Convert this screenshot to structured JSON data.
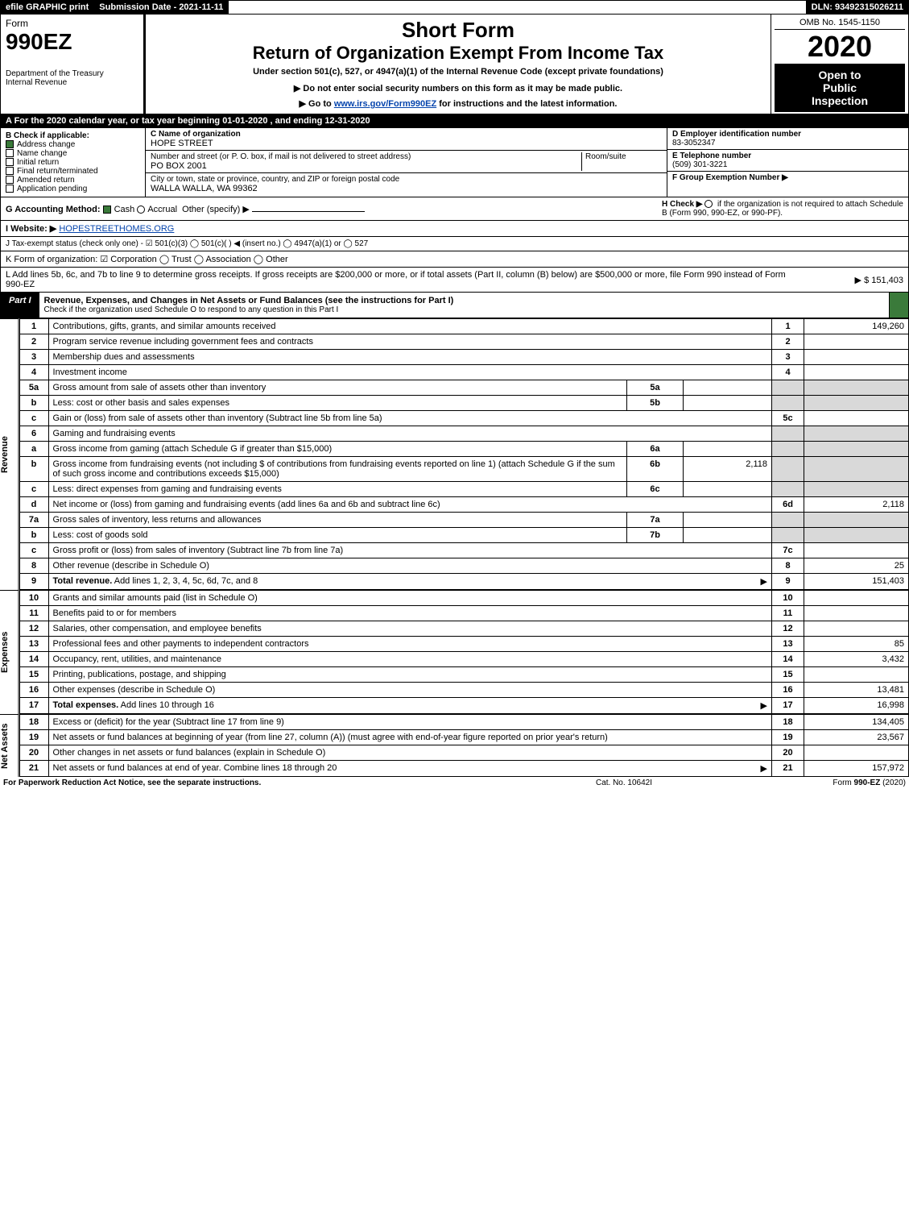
{
  "topbar": {
    "efile": "efile GRAPHIC print",
    "submission": "Submission Date - 2021-11-11",
    "dln": "DLN: 93492315026211"
  },
  "header": {
    "form_word": "Form",
    "form_no": "990EZ",
    "dept": "Department of the Treasury",
    "irs": "Internal Revenue",
    "short_form": "Short Form",
    "return_title": "Return of Organization Exempt From Income Tax",
    "under_section": "Under section 501(c), 527, or 4947(a)(1) of the Internal Revenue Code (except private foundations)",
    "warn_prefix": "▶ Do not enter social security numbers on this form as it may be made public.",
    "goto_prefix": "▶ Go to ",
    "goto_link": "www.irs.gov/Form990EZ",
    "goto_suffix": " for instructions and the latest information.",
    "omb": "OMB No. 1545-1150",
    "year": "2020",
    "open1": "Open to",
    "open2": "Public",
    "open3": "Inspection"
  },
  "sectionA": "A For the 2020 calendar year, or tax year beginning 01-01-2020 , and ending 12-31-2020",
  "boxB": {
    "title": "B  Check if applicable:",
    "items": [
      "Address change",
      "Name change",
      "Initial return",
      "Final return/terminated",
      "Amended return",
      "Application pending"
    ],
    "checked": [
      true,
      false,
      false,
      false,
      false,
      false
    ]
  },
  "boxC": {
    "c_label": "C Name of organization",
    "c_value": "HOPE STREET",
    "addr_label": "Number and street (or P. O. box, if mail is not delivered to street address)",
    "addr_value": "PO BOX 2001",
    "room_label": "Room/suite",
    "city_label": "City or town, state or province, country, and ZIP or foreign postal code",
    "city_value": "WALLA WALLA, WA  99362"
  },
  "rightcol": {
    "d_label": "D Employer identification number",
    "d_value": "83-3052347",
    "e_label": "E Telephone number",
    "e_value": "(509) 301-3221",
    "f_label": "F Group Exemption Number   ▶"
  },
  "lineG": {
    "label_prefix": "G Accounting Method:",
    "cash": "Cash",
    "accrual": "Accrual",
    "other": "Other (specify) ▶",
    "h_text": "H  Check ▶",
    "h_suffix": "if the organization is not required to attach Schedule B (Form 990, 990-EZ, or 990-PF)."
  },
  "lineI": {
    "prefix": "I Website: ▶",
    "url": "HOPESTREETHOMES.ORG"
  },
  "lineJ": "J Tax-exempt status (check only one) -  ☑ 501(c)(3)  ◯ 501(c)(  ) ◀ (insert no.)  ◯ 4947(a)(1) or  ◯ 527",
  "lineK": "K Form of organization:   ☑ Corporation   ◯ Trust   ◯ Association   ◯ Other",
  "lineL": {
    "text": "L Add lines 5b, 6c, and 7b to line 9 to determine gross receipts. If gross receipts are $200,000 or more, or if total assets (Part II, column (B) below) are $500,000 or more, file Form 990 instead of Form 990-EZ",
    "amount": "▶ $ 151,403"
  },
  "part1": {
    "tag": "Part I",
    "title": "Revenue, Expenses, and Changes in Net Assets or Fund Balances (see the instructions for Part I)",
    "sub": "Check if the organization used Schedule O to respond to any question in this Part I"
  },
  "vlabels": {
    "revenue": "Revenue",
    "expenses": "Expenses",
    "netassets": "Net Assets"
  },
  "revenue_rows": [
    {
      "n": "1",
      "desc": "Contributions, gifts, grants, and similar amounts received",
      "ref": "1",
      "amt": "149,260"
    },
    {
      "n": "2",
      "desc": "Program service revenue including government fees and contracts",
      "ref": "2",
      "amt": ""
    },
    {
      "n": "3",
      "desc": "Membership dues and assessments",
      "ref": "3",
      "amt": ""
    },
    {
      "n": "4",
      "desc": "Investment income",
      "ref": "4",
      "amt": ""
    },
    {
      "n": "5a",
      "desc": "Gross amount from sale of assets other than inventory",
      "mid": "5a",
      "midamt": "",
      "shade": true
    },
    {
      "n": "b",
      "desc": "Less: cost or other basis and sales expenses",
      "mid": "5b",
      "midamt": "",
      "shade": true
    },
    {
      "n": "c",
      "desc": "Gain or (loss) from sale of assets other than inventory (Subtract line 5b from line 5a)",
      "ref": "5c",
      "amt": ""
    },
    {
      "n": "6",
      "desc": "Gaming and fundraising events",
      "shade": true,
      "noref": true
    },
    {
      "n": "a",
      "desc": "Gross income from gaming (attach Schedule G if greater than $15,000)",
      "mid": "6a",
      "midamt": "",
      "shade": true
    },
    {
      "n": "b",
      "desc": "Gross income from fundraising events (not including $                           of contributions from fundraising events reported on line 1) (attach Schedule G if the sum of such gross income and contributions exceeds $15,000)",
      "mid": "6b",
      "midamt": "2,118",
      "shade": true
    },
    {
      "n": "c",
      "desc": "Less: direct expenses from gaming and fundraising events",
      "mid": "6c",
      "midamt": "",
      "shade": true
    },
    {
      "n": "d",
      "desc": "Net income or (loss) from gaming and fundraising events (add lines 6a and 6b and subtract line 6c)",
      "ref": "6d",
      "amt": "2,118"
    },
    {
      "n": "7a",
      "desc": "Gross sales of inventory, less returns and allowances",
      "mid": "7a",
      "midamt": "",
      "shade": true
    },
    {
      "n": "b",
      "desc": "Less: cost of goods sold",
      "mid": "7b",
      "midamt": "",
      "shade": true
    },
    {
      "n": "c",
      "desc": "Gross profit or (loss) from sales of inventory (Subtract line 7b from line 7a)",
      "ref": "7c",
      "amt": ""
    },
    {
      "n": "8",
      "desc": "Other revenue (describe in Schedule O)",
      "ref": "8",
      "amt": "25"
    },
    {
      "n": "9",
      "desc": "Total revenue. Add lines 1, 2, 3, 4, 5c, 6d, 7c, and 8",
      "ref": "9",
      "amt": "151,403",
      "bold": true,
      "arrow": true
    }
  ],
  "expense_rows": [
    {
      "n": "10",
      "desc": "Grants and similar amounts paid (list in Schedule O)",
      "ref": "10",
      "amt": ""
    },
    {
      "n": "11",
      "desc": "Benefits paid to or for members",
      "ref": "11",
      "amt": ""
    },
    {
      "n": "12",
      "desc": "Salaries, other compensation, and employee benefits",
      "ref": "12",
      "amt": ""
    },
    {
      "n": "13",
      "desc": "Professional fees and other payments to independent contractors",
      "ref": "13",
      "amt": "85"
    },
    {
      "n": "14",
      "desc": "Occupancy, rent, utilities, and maintenance",
      "ref": "14",
      "amt": "3,432"
    },
    {
      "n": "15",
      "desc": "Printing, publications, postage, and shipping",
      "ref": "15",
      "amt": ""
    },
    {
      "n": "16",
      "desc": "Other expenses (describe in Schedule O)",
      "ref": "16",
      "amt": "13,481"
    },
    {
      "n": "17",
      "desc": "Total expenses. Add lines 10 through 16",
      "ref": "17",
      "amt": "16,998",
      "bold": true,
      "arrow": true
    }
  ],
  "netassets_rows": [
    {
      "n": "18",
      "desc": "Excess or (deficit) for the year (Subtract line 17 from line 9)",
      "ref": "18",
      "amt": "134,405"
    },
    {
      "n": "19",
      "desc": "Net assets or fund balances at beginning of year (from line 27, column (A)) (must agree with end-of-year figure reported on prior year's return)",
      "ref": "19",
      "amt": "23,567"
    },
    {
      "n": "20",
      "desc": "Other changes in net assets or fund balances (explain in Schedule O)",
      "ref": "20",
      "amt": ""
    },
    {
      "n": "21",
      "desc": "Net assets or fund balances at end of year. Combine lines 18 through 20",
      "ref": "21",
      "amt": "157,972",
      "arrow": true
    }
  ],
  "footer": {
    "left": "For Paperwork Reduction Act Notice, see the separate instructions.",
    "center": "Cat. No. 10642I",
    "right_prefix": "Form ",
    "right_bold": "990-EZ",
    "right_suffix": " (2020)"
  }
}
